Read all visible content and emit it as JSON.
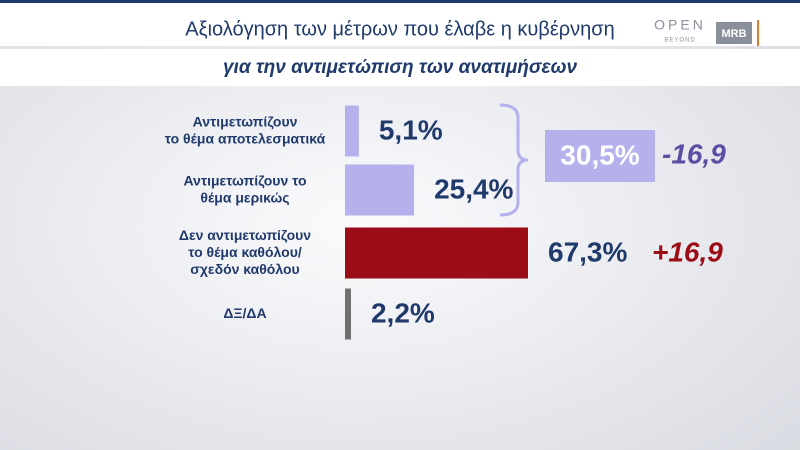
{
  "header": {
    "title": "Αξιολόγηση των μέτρων που έλαβε η κυβέρνηση",
    "subtitle": "για την αντιμετώπιση των ανατιμήσεων",
    "logo": "OPEN",
    "logo_tagline": "BEYOND",
    "pollster": "MRB"
  },
  "chart_data": {
    "type": "bar",
    "orientation": "horizontal",
    "categories": [
      [
        "Αντιμετωπίζουν",
        "το θέμα αποτελεσματικά"
      ],
      [
        "Αντιμετωπίζουν το",
        "θέμα μερικώς"
      ],
      [
        "Δεν αντιμετωπίζουν",
        "το θέμα καθόλου/",
        "σχεδόν καθόλου"
      ],
      [
        "ΔΞ/ΔΑ"
      ]
    ],
    "values": [
      5.1,
      25.4,
      67.3,
      2.2
    ],
    "value_labels": [
      "5,1%",
      "25,4%",
      "67,3%",
      "2,2%"
    ],
    "colors": [
      "#b4b1ec",
      "#b4b1ec",
      "#9c0c16",
      "#707070"
    ],
    "group_total": {
      "value": 30.5,
      "label": "30,5%",
      "change": -16.9,
      "change_label": "-16,9",
      "color": "#b4b1ec"
    },
    "change": {
      "value": 16.9,
      "label": "+16,9"
    }
  }
}
